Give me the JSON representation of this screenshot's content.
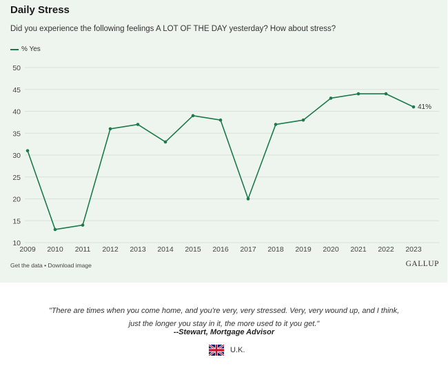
{
  "title": "Daily Stress",
  "subtitle": "Did you experience the following feelings A LOT OF THE DAY yesterday? How about stress?",
  "footer": {
    "get_data": "Get the data",
    "separator": " • ",
    "download": "Download image",
    "brand": "GALLUP"
  },
  "quote": {
    "line1": "\"There are times when you come home, and you're very, very stressed. Very, very wound up, and I think,",
    "line2": "just the longer you stay in it, the more used to it you get.\"",
    "attribution": "--Stewart, Mortgage Advisor",
    "country": "U.K."
  },
  "colors": {
    "line": "#1c7a4a",
    "panel_bg": "#eef5ee",
    "grid": "#d8e2d8"
  },
  "chart_data": {
    "type": "line",
    "categories": [
      "2009",
      "2010",
      "2011",
      "2012",
      "2013",
      "2014",
      "2015",
      "2016",
      "2017",
      "2018",
      "2019",
      "2020",
      "2021",
      "2022",
      "2023"
    ],
    "series": [
      {
        "name": "% Yes",
        "values": [
          31,
          13,
          14,
          36,
          37,
          33,
          39,
          38,
          20,
          37,
          38,
          43,
          44,
          44,
          41
        ]
      }
    ],
    "end_label": "41%",
    "ylim": [
      10,
      50
    ],
    "yticks": [
      10,
      15,
      20,
      25,
      30,
      35,
      40,
      45,
      50
    ],
    "grid": true,
    "legend_position": "top-left"
  }
}
